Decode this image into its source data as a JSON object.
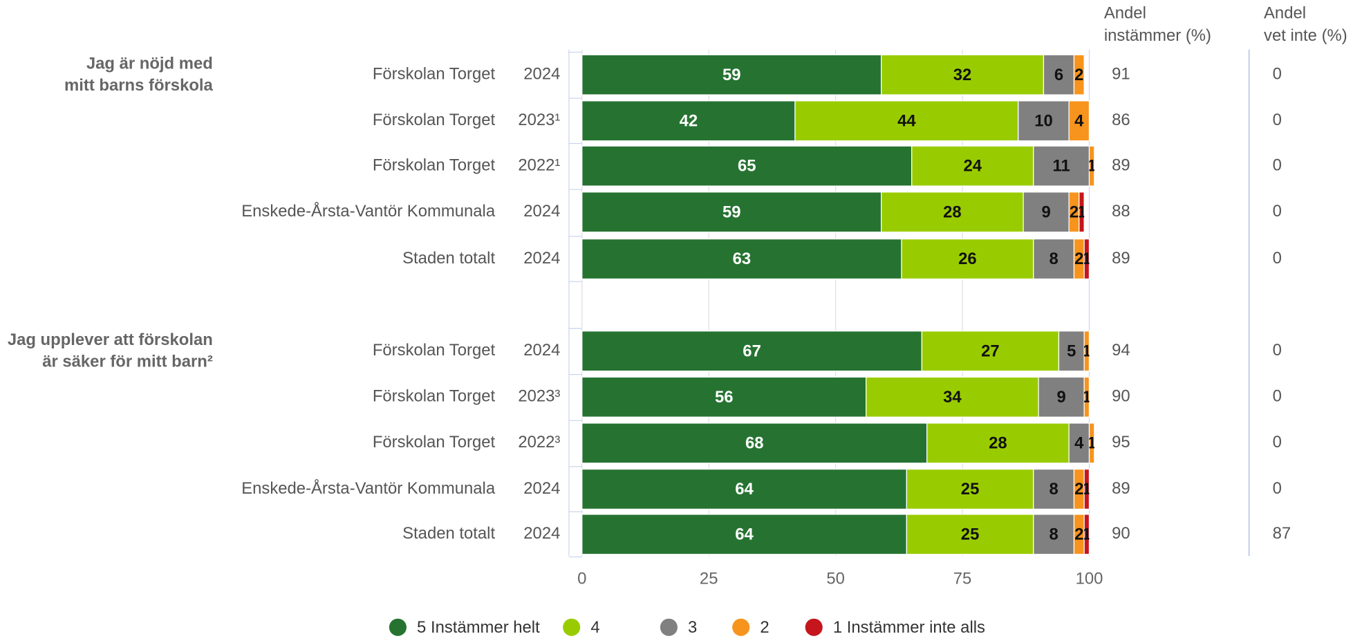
{
  "chart_data": {
    "type": "bar",
    "orientation": "horizontal",
    "stacked": true,
    "xlim": [
      0,
      100
    ],
    "xticks": [
      0,
      25,
      50,
      75,
      100
    ],
    "grid": true,
    "legend": "bottom",
    "series": [
      {
        "name": "5 Instämmer helt",
        "color": "#267331"
      },
      {
        "name": "4",
        "color": "#99cc00"
      },
      {
        "name": "3",
        "color": "#808080"
      },
      {
        "name": "2",
        "color": "#f7941d"
      },
      {
        "name": "1 Instämmer inte alls",
        "color": "#c4161c"
      }
    ],
    "column_headers": [
      [
        "Andel",
        "instämmer (%)"
      ],
      [
        "Andel",
        "vet inte (%)"
      ]
    ],
    "groups": [
      {
        "label": [
          "Jag är nöjd med",
          "mitt barns förskola"
        ],
        "categories": [
          "Förskolan Torget",
          "Förskolan Torget",
          "Förskolan Torget",
          "Enskede-Årsta-Vantör Kommunala",
          "Staden totalt"
        ],
        "years": [
          "2024",
          "2023¹",
          "2022¹",
          "2024",
          "2024"
        ],
        "values": [
          [
            59,
            42,
            65,
            59,
            63
          ],
          [
            32,
            44,
            24,
            28,
            26
          ],
          [
            6,
            10,
            11,
            9,
            8
          ],
          [
            2,
            4,
            1,
            2,
            2
          ],
          [
            0,
            0,
            0,
            1,
            1
          ]
        ],
        "agree": [
          91,
          86,
          89,
          88,
          89
        ],
        "dont_know": [
          0,
          0,
          0,
          0,
          0
        ]
      },
      {
        "label": [
          "Jag upplever att förskolan",
          "är säker för mitt barn²"
        ],
        "categories": [
          "Förskolan Torget",
          "Förskolan Torget",
          "Förskolan Torget",
          "Enskede-Årsta-Vantör Kommunala",
          "Staden totalt"
        ],
        "years": [
          "2024",
          "2023³",
          "2022³",
          "2024",
          "2024"
        ],
        "values": [
          [
            67,
            56,
            68,
            64,
            64
          ],
          [
            27,
            34,
            28,
            25,
            25
          ],
          [
            5,
            9,
            4,
            8,
            8
          ],
          [
            1,
            1,
            1,
            2,
            2
          ],
          [
            0,
            0,
            0,
            1,
            1
          ]
        ],
        "agree": [
          94,
          90,
          95,
          89,
          90
        ],
        "dont_know": [
          0,
          0,
          0,
          0,
          87
        ]
      }
    ]
  }
}
